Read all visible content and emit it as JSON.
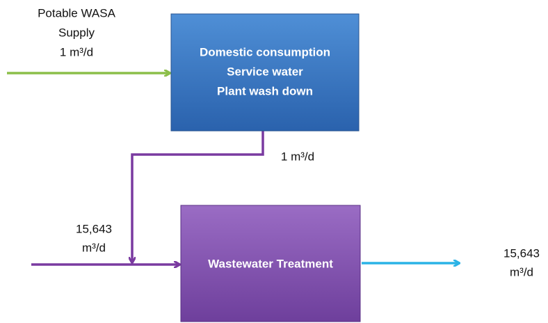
{
  "nodes": [
    {
      "lines": [
        "Domestic consumption",
        "Service water",
        "Plant wash down"
      ]
    },
    {
      "lines": [
        "Wastewater Treatment"
      ]
    }
  ],
  "flows": [
    {
      "lines": [
        "Potable WASA",
        "Supply",
        "1 m³/d"
      ]
    },
    {
      "lines": [
        "1 m³/d"
      ]
    },
    {
      "lines": [
        "15,643",
        "m³/d"
      ]
    },
    {
      "lines": [
        "15,643",
        "m³/d"
      ]
    }
  ]
}
